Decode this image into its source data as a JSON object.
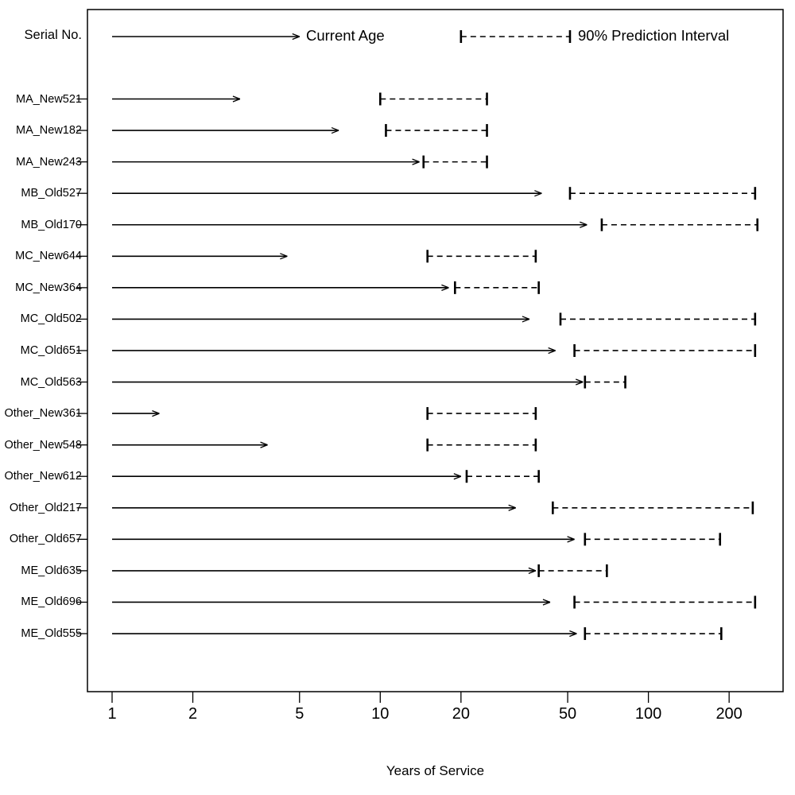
{
  "header": {
    "serial_label": "Serial No.",
    "current_age_label": "Current Age",
    "pi_label": "90% Prediction Interval"
  },
  "xaxis": {
    "label": "Years of Service",
    "ticks": [
      1,
      2,
      5,
      10,
      20,
      50,
      100,
      200
    ]
  },
  "chart_data": {
    "type": "scatter",
    "subtype": "arrow-and-interval-plot",
    "title": "",
    "xlabel": "Years of Service",
    "ylabel": "Serial No.",
    "x_scale": "log10",
    "xlim": [
      1,
      300
    ],
    "grid": false,
    "legend": {
      "position": "top-inside",
      "solid_arrow": {
        "label": "Current Age",
        "from": 1,
        "to": 5
      },
      "dashed_interval": {
        "label": "90% Prediction Interval",
        "from": 20,
        "to": 51
      }
    },
    "rows": [
      {
        "serial": "MA_New521",
        "current_age": 3.0,
        "pi_lower": 10,
        "pi_upper": 25
      },
      {
        "serial": "MA_New182",
        "current_age": 7.0,
        "pi_lower": 10.5,
        "pi_upper": 25
      },
      {
        "serial": "MA_New243",
        "current_age": 14,
        "pi_lower": 14.5,
        "pi_upper": 25
      },
      {
        "serial": "MB_Old527",
        "current_age": 40,
        "pi_lower": 51,
        "pi_upper": 250
      },
      {
        "serial": "MB_Old170",
        "current_age": 59,
        "pi_lower": 67,
        "pi_upper": 255
      },
      {
        "serial": "MC_New644",
        "current_age": 4.5,
        "pi_lower": 15,
        "pi_upper": 38
      },
      {
        "serial": "MC_New364",
        "current_age": 18,
        "pi_lower": 19,
        "pi_upper": 39
      },
      {
        "serial": "MC_Old502",
        "current_age": 36,
        "pi_lower": 47,
        "pi_upper": 250
      },
      {
        "serial": "MC_Old651",
        "current_age": 45,
        "pi_lower": 53,
        "pi_upper": 250
      },
      {
        "serial": "MC_Old563",
        "current_age": 57,
        "pi_lower": 58,
        "pi_upper": 82
      },
      {
        "serial": "Other_New361",
        "current_age": 1.5,
        "pi_lower": 15,
        "pi_upper": 38
      },
      {
        "serial": "Other_New548",
        "current_age": 3.8,
        "pi_lower": 15,
        "pi_upper": 38
      },
      {
        "serial": "Other_New612",
        "current_age": 20,
        "pi_lower": 21,
        "pi_upper": 39
      },
      {
        "serial": "Other_Old217",
        "current_age": 32,
        "pi_lower": 44,
        "pi_upper": 245
      },
      {
        "serial": "Other_Old657",
        "current_age": 53,
        "pi_lower": 58,
        "pi_upper": 185
      },
      {
        "serial": "ME_Old635",
        "current_age": 38,
        "pi_lower": 39,
        "pi_upper": 70
      },
      {
        "serial": "ME_Old696",
        "current_age": 43,
        "pi_lower": 53,
        "pi_upper": 250
      },
      {
        "serial": "ME_Old555",
        "current_age": 54,
        "pi_lower": 58,
        "pi_upper": 187
      }
    ]
  },
  "colors": {
    "line": "#000000",
    "background": "#ffffff"
  }
}
